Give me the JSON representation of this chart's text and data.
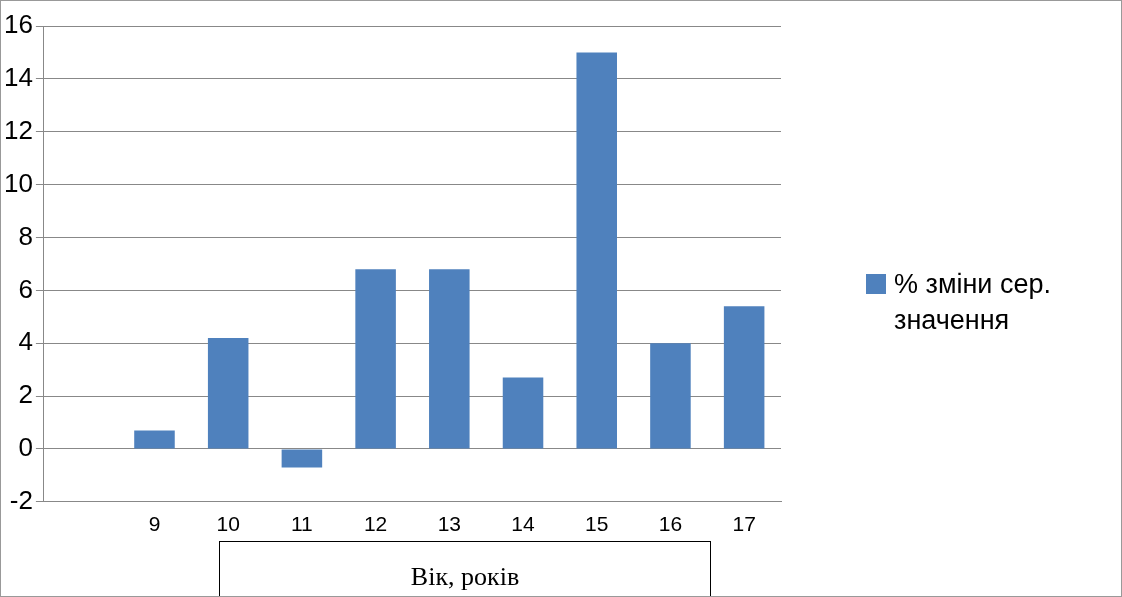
{
  "chart_data": {
    "type": "bar",
    "xlabel": "Вік, років",
    "categories": [
      null,
      "9",
      "10",
      "11",
      "12",
      "13",
      "14",
      "15",
      "16",
      "17"
    ],
    "series": [
      {
        "name": "% зміни сер. значення",
        "color": "#4f81bd",
        "values": [
          null,
          0.7,
          4.2,
          -0.7,
          6.8,
          6.8,
          2.7,
          15,
          4,
          5.4
        ]
      }
    ],
    "ylim": [
      -2,
      16
    ],
    "yticks": [
      -2,
      0,
      2,
      4,
      6,
      8,
      10,
      12,
      14,
      16
    ],
    "grid": "y",
    "legend": "right"
  }
}
